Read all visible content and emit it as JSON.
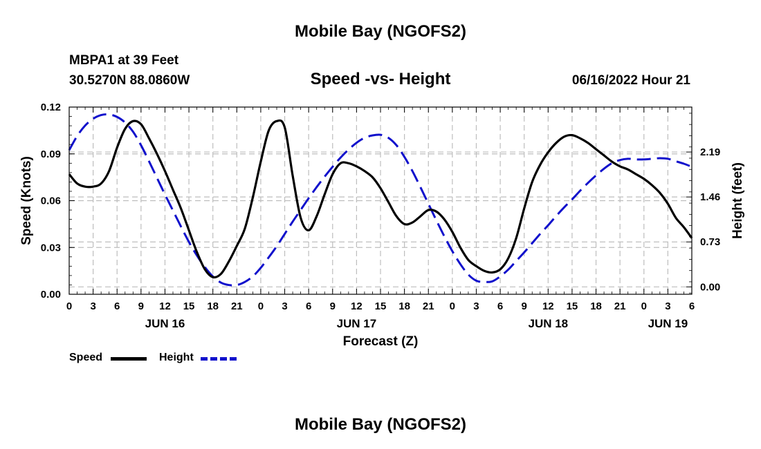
{
  "page": {
    "title_top": "Mobile Bay (NGOFS2)",
    "title_bottom": "Mobile Bay (NGOFS2)",
    "station": "MBPA1 at 39 Feet",
    "coords": "30.5270N  88.0860W",
    "subtitle": "Speed -vs- Height",
    "datetime": "06/16/2022 Hour 21"
  },
  "chart_data": {
    "type": "line",
    "title": "Speed -vs- Height",
    "xlabel": "Forecast (Z)",
    "ylabel": "Speed (Knots)",
    "ylabel_right": "Height (feet)",
    "x_range_hours": [
      0,
      78
    ],
    "x_tick_step_hours": 3,
    "x_tick_labels": [
      "0",
      "3",
      "6",
      "9",
      "12",
      "15",
      "18",
      "21",
      "0",
      "3",
      "6",
      "9",
      "12",
      "15",
      "18",
      "21",
      "0",
      "3",
      "6",
      "9",
      "12",
      "15",
      "18",
      "21",
      "0",
      "3",
      "6"
    ],
    "date_labels": [
      {
        "label": "JUN 16",
        "hour": 12
      },
      {
        "label": "JUN 17",
        "hour": 36
      },
      {
        "label": "JUN 18",
        "hour": 60
      },
      {
        "label": "JUN 19",
        "hour": 75
      }
    ],
    "ylim": [
      0,
      0.12
    ],
    "y_ticks": [
      0,
      0.03,
      0.06,
      0.09,
      0.12
    ],
    "y_tick_labels": [
      "0.00",
      "0.03",
      "0.06",
      "0.09",
      "0.12"
    ],
    "ylim_right": [
      -0.12,
      2.92
    ],
    "y_ticks_right": [
      0,
      0.73,
      1.46,
      2.19
    ],
    "y_tick_labels_right": [
      "0.00",
      "0.73",
      "1.46",
      "2.19"
    ],
    "grid": true,
    "series": [
      {
        "name": "Speed",
        "axis": "left",
        "color": "#000000",
        "dash": "solid",
        "x": [
          0,
          1,
          2,
          3,
          4,
          5,
          6,
          7,
          8,
          9,
          10,
          11,
          12,
          13,
          14,
          15,
          16,
          17,
          18,
          19,
          20,
          21,
          22,
          23,
          24,
          25,
          26,
          27,
          28,
          29,
          30,
          31,
          32,
          33,
          34,
          35,
          36,
          37,
          38,
          39,
          40,
          41,
          42,
          43,
          44,
          45,
          46,
          47,
          48,
          49,
          50,
          51,
          52,
          53,
          54,
          55,
          56,
          57,
          58,
          59,
          60,
          61,
          62,
          63,
          64,
          65,
          66,
          67,
          68,
          69,
          70,
          71,
          72,
          73,
          74,
          75,
          76,
          77,
          78
        ],
        "values": [
          0.077,
          0.071,
          0.069,
          0.069,
          0.071,
          0.079,
          0.094,
          0.106,
          0.111,
          0.109,
          0.1,
          0.09,
          0.079,
          0.067,
          0.055,
          0.041,
          0.027,
          0.016,
          0.011,
          0.013,
          0.021,
          0.031,
          0.042,
          0.062,
          0.085,
          0.105,
          0.111,
          0.107,
          0.076,
          0.049,
          0.041,
          0.05,
          0.064,
          0.077,
          0.084,
          0.084,
          0.082,
          0.079,
          0.075,
          0.068,
          0.059,
          0.05,
          0.045,
          0.046,
          0.05,
          0.054,
          0.053,
          0.048,
          0.04,
          0.03,
          0.022,
          0.018,
          0.015,
          0.014,
          0.016,
          0.023,
          0.036,
          0.055,
          0.072,
          0.083,
          0.091,
          0.097,
          0.101,
          0.102,
          0.1,
          0.097,
          0.093,
          0.089,
          0.085,
          0.082,
          0.08,
          0.077,
          0.074,
          0.07,
          0.065,
          0.058,
          0.049,
          0.043,
          0.036
        ]
      },
      {
        "name": "Height",
        "axis": "right",
        "color": "#1111cc",
        "dash": "dashed",
        "x": [
          0,
          1,
          2,
          3,
          4,
          5,
          6,
          7,
          8,
          9,
          10,
          11,
          12,
          13,
          14,
          15,
          16,
          17,
          18,
          19,
          20,
          21,
          22,
          23,
          24,
          25,
          26,
          27,
          28,
          29,
          30,
          31,
          32,
          33,
          34,
          35,
          36,
          37,
          38,
          39,
          40,
          41,
          42,
          43,
          44,
          45,
          46,
          47,
          48,
          49,
          50,
          51,
          52,
          53,
          54,
          55,
          56,
          57,
          58,
          59,
          60,
          61,
          62,
          63,
          64,
          65,
          66,
          67,
          68,
          69,
          70,
          71,
          72,
          73,
          74,
          75,
          76,
          77,
          78
        ],
        "values": [
          2.22,
          2.45,
          2.62,
          2.73,
          2.79,
          2.8,
          2.76,
          2.67,
          2.52,
          2.3,
          2.04,
          1.77,
          1.5,
          1.24,
          0.98,
          0.73,
          0.51,
          0.32,
          0.17,
          0.07,
          0.03,
          0.03,
          0.08,
          0.17,
          0.31,
          0.48,
          0.66,
          0.86,
          1.06,
          1.25,
          1.44,
          1.62,
          1.79,
          1.95,
          2.1,
          2.23,
          2.34,
          2.42,
          2.46,
          2.47,
          2.42,
          2.3,
          2.11,
          1.88,
          1.62,
          1.35,
          1.08,
          0.82,
          0.58,
          0.37,
          0.2,
          0.1,
          0.08,
          0.09,
          0.17,
          0.28,
          0.42,
          0.56,
          0.71,
          0.86,
          1.0,
          1.15,
          1.29,
          1.42,
          1.56,
          1.69,
          1.81,
          1.92,
          2.01,
          2.06,
          2.08,
          2.07,
          2.07,
          2.08,
          2.09,
          2.08,
          2.04,
          2.0,
          1.95
        ]
      }
    ],
    "legend": [
      {
        "name": "Speed",
        "color": "#000000",
        "dash": "solid"
      },
      {
        "name": "Height",
        "color": "#1111cc",
        "dash": "dashed"
      }
    ],
    "legend_position": "bottom-left"
  }
}
